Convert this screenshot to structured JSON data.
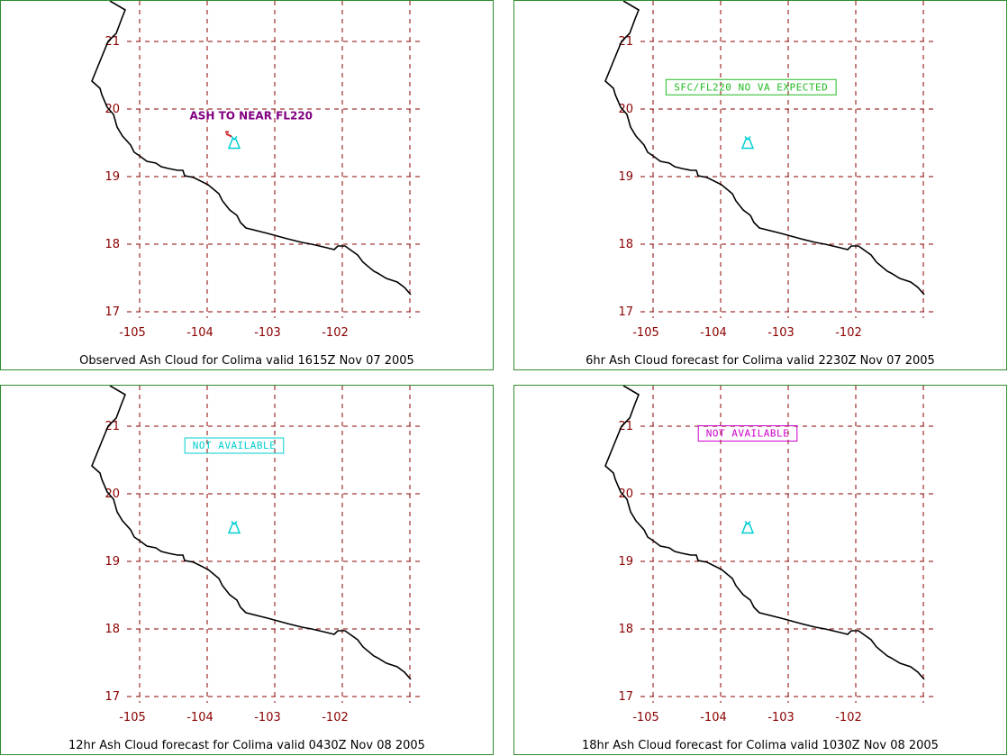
{
  "map": {
    "lon_ticks": [
      "-105",
      "-104",
      "-103",
      "-102"
    ],
    "lat_ticks": [
      "21",
      "20",
      "19",
      "18",
      "17"
    ],
    "lon_range": [
      -105,
      -101
    ],
    "lat_range": [
      17,
      21.5
    ],
    "colors": {
      "grid": "#8b0000",
      "coastline": "#000000",
      "volcano_symbol": "#00ced1",
      "border": "#2e8b2e"
    },
    "volcano": {
      "lon": -103.6,
      "lat": 19.5
    }
  },
  "panels": [
    {
      "caption": "Observed Ash Cloud for Colima valid 1615Z Nov 07 2005",
      "annotation": {
        "text": "ASH TO NEAR FL220",
        "color": "#800080",
        "boxed": false,
        "lon": -103.35,
        "lat": 19.85
      },
      "volcano_icon": "volcano-erupting-icon"
    },
    {
      "caption": "6hr Ash Cloud forecast for Colima valid 2230Z Nov 07 2005",
      "annotation": {
        "text": "SFC/FL220 NO VA EXPECTED",
        "color": "#22bb22",
        "boxed": true,
        "lon": -103.55,
        "lat": 20.33
      },
      "volcano_icon": "volcano-icon"
    },
    {
      "caption": "12hr Ash Cloud forecast for Colima valid 0430Z Nov 08 2005",
      "annotation": {
        "text": "NOT AVAILABLE",
        "color": "#00ced1",
        "boxed": true,
        "lon": -103.6,
        "lat": 20.72
      },
      "volcano_icon": "volcano-icon"
    },
    {
      "caption": "18hr Ash Cloud forecast for Colima valid 1030Z Nov 08 2005",
      "annotation": {
        "text": "NOT AVAILABLE",
        "color": "#cc00cc",
        "boxed": true,
        "lon": -103.6,
        "lat": 20.9
      },
      "volcano_icon": "volcano-icon"
    }
  ]
}
